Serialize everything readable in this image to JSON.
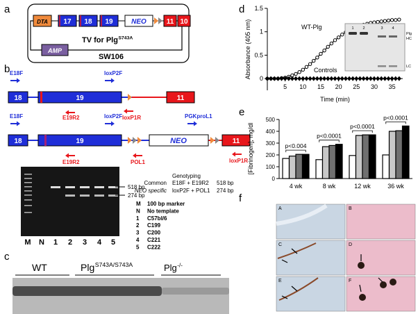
{
  "panel_labels": [
    "a",
    "b",
    "c",
    "d",
    "e",
    "f"
  ],
  "panel_a": {
    "dta": "DTA",
    "exons": [
      "17",
      "18",
      "19"
    ],
    "neo": "NEO",
    "exons_end": [
      "11",
      "10"
    ],
    "vector": {
      "text": "TV for Plg",
      "sup": "S743A"
    },
    "amp": "AMP",
    "plasmid": "SW106"
  },
  "panel_b": {
    "wt_allele": {
      "primers": [
        "E18F",
        "loxP2F",
        "E19R2",
        "loxP1R"
      ],
      "exons": [
        "18",
        "19",
        "11"
      ]
    },
    "targeted_allele": {
      "primers": [
        "E18F",
        "loxP2F",
        "PGKproL1",
        "E19R2",
        "POL1",
        "loxP1R"
      ],
      "exons": [
        "18",
        "19",
        "11"
      ],
      "neo": "NEO"
    },
    "gel": {
      "lanes": [
        "M",
        "N",
        "1",
        "2",
        "3",
        "4",
        "5"
      ],
      "bands": [
        "518 bp",
        "274 bp"
      ]
    },
    "genotyping": {
      "title": "Genotyping",
      "rows": [
        [
          "Common",
          "E18F + E19R2",
          "518 bp"
        ],
        [
          "NEO specific",
          "loxP2F + POL1",
          "274 bp"
        ]
      ]
    },
    "key": [
      [
        "M",
        "100 bp marker"
      ],
      [
        "N",
        "No template"
      ],
      [
        "1",
        "C57bl/6"
      ],
      [
        "2",
        "C199"
      ],
      [
        "3",
        "C200"
      ],
      [
        "4",
        "C221"
      ],
      [
        "5",
        "C222"
      ]
    ]
  },
  "panel_c": {
    "groups": [
      {
        "text": "WT"
      },
      {
        "text": "Plg",
        "sup": "S743A/S743A"
      },
      {
        "text": "Plg",
        "sup": "-/-"
      }
    ]
  },
  "panel_d_inset": {
    "lanes": [
      "1",
      "2",
      "3",
      "4"
    ],
    "bands": [
      "Plg",
      "HC",
      "LC"
    ]
  },
  "panel_f": {
    "labels": [
      "A",
      "B",
      "C",
      "D",
      "E",
      "F"
    ]
  },
  "chart_data": [
    {
      "type": "line",
      "xlabel": "Time (min)",
      "ylabel": "Absorbance (405 nm)",
      "annotations": [
        "WT-Plg",
        "Controls"
      ],
      "x": [
        0,
        1,
        2,
        3,
        4,
        5,
        6,
        7,
        8,
        9,
        10,
        11,
        12,
        13,
        14,
        15,
        16,
        17,
        18,
        19,
        20,
        21,
        22,
        23,
        24,
        25,
        26,
        27,
        28,
        29,
        30,
        31,
        32,
        33,
        34,
        35,
        36,
        37
      ],
      "series": [
        {
          "color": "#000000",
          "values": [
            0,
            0,
            0,
            0,
            0.01,
            0.02,
            0.04,
            0.07,
            0.1,
            0.14,
            0.19,
            0.25,
            0.31,
            0.38,
            0.45,
            0.53,
            0.6,
            0.68,
            0.75,
            0.82,
            0.88,
            0.94,
            0.99,
            1.03,
            1.07,
            1.1,
            1.13,
            1.15,
            1.17,
            1.19,
            1.2,
            1.21,
            1.22,
            1.23,
            1.24,
            1.25,
            1.25,
            1.26
          ]
        },
        {
          "color": "#000000",
          "values": [
            0,
            0,
            0,
            0,
            0,
            0,
            0,
            0,
            0,
            0,
            0,
            0,
            0,
            0,
            0,
            0,
            0,
            0,
            0,
            0,
            0,
            0,
            0,
            0,
            0,
            0,
            0,
            0,
            0,
            0,
            0,
            0,
            0,
            0,
            0,
            0,
            0,
            0
          ]
        }
      ],
      "xlim": [
        0,
        38
      ],
      "xticks": [
        5,
        10,
        15,
        20,
        25,
        30,
        35
      ],
      "ylim": [
        -0.25,
        1.5
      ],
      "yticks": [
        0,
        0.5,
        1,
        1.5
      ]
    },
    {
      "type": "bar",
      "ylabel": "[Fibrinogen], mg/dl",
      "categories": [
        "4 wk",
        "8 wk",
        "12 wk",
        "36 wk"
      ],
      "series": [
        {
          "color": "#ffffff",
          "values": [
            170,
            160,
            195,
            200
          ]
        },
        {
          "color": "#c8c8c8",
          "values": [
            190,
            270,
            365,
            400
          ]
        },
        {
          "color": "#707070",
          "values": [
            205,
            280,
            370,
            405
          ]
        },
        {
          "color": "#000000",
          "values": [
            205,
            290,
            370,
            445
          ]
        }
      ],
      "annotations": [
        "p<0.004",
        "p<0.0001",
        "p<0.0001",
        "p<0.0001"
      ],
      "ylim": [
        0,
        500
      ],
      "yticks": [
        0,
        100,
        200,
        300,
        400,
        500
      ]
    }
  ]
}
